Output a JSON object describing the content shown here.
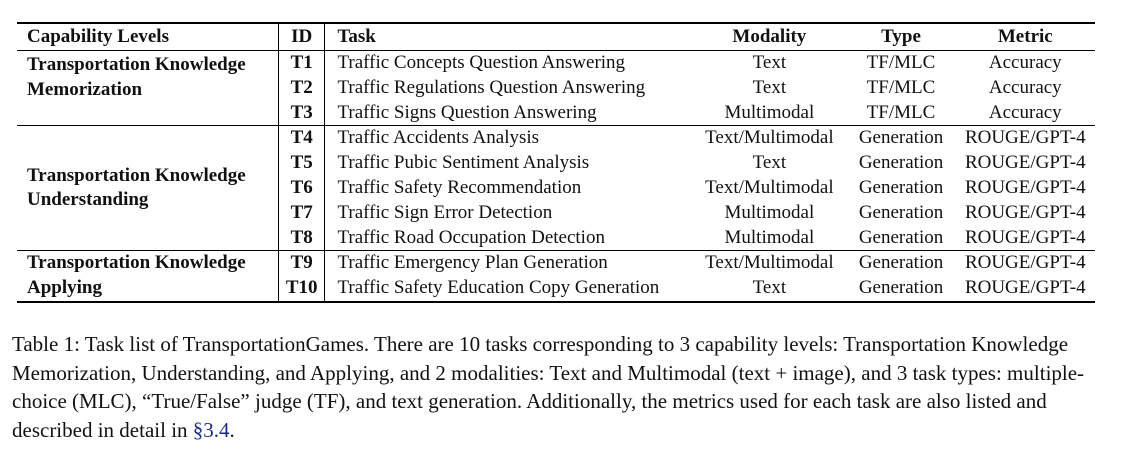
{
  "table": {
    "headers": {
      "capability": "Capability Levels",
      "id": "ID",
      "task": "Task",
      "modality": "Modality",
      "type": "Type",
      "metric": "Metric"
    },
    "groups": [
      {
        "capability_line1": "Transportation Knowledge",
        "capability_line2": "Memorization",
        "rows": [
          {
            "id": "T1",
            "task": "Traffic Concepts Question Answering",
            "modality": "Text",
            "type": "TF/MLC",
            "metric": "Accuracy"
          },
          {
            "id": "T2",
            "task": "Traffic Regulations Question Answering",
            "modality": "Text",
            "type": "TF/MLC",
            "metric": "Accuracy"
          },
          {
            "id": "T3",
            "task": "Traffic Signs Question Answering",
            "modality": "Multimodal",
            "type": "TF/MLC",
            "metric": "Accuracy"
          }
        ]
      },
      {
        "capability_line1": "Transportation Knowledge",
        "capability_line2": "Understanding",
        "rows": [
          {
            "id": "T4",
            "task": "Traffic Accidents Analysis",
            "modality": "Text/Multimodal",
            "type": "Generation",
            "metric": "ROUGE/GPT-4"
          },
          {
            "id": "T5",
            "task": "Traffic Pubic Sentiment Analysis",
            "modality": "Text",
            "type": "Generation",
            "metric": "ROUGE/GPT-4"
          },
          {
            "id": "T6",
            "task": "Traffic Safety Recommendation",
            "modality": "Text/Multimodal",
            "type": "Generation",
            "metric": "ROUGE/GPT-4"
          },
          {
            "id": "T7",
            "task": "Traffic Sign Error Detection",
            "modality": "Multimodal",
            "type": "Generation",
            "metric": "ROUGE/GPT-4"
          },
          {
            "id": "T8",
            "task": "Traffic Road Occupation Detection",
            "modality": "Multimodal",
            "type": "Generation",
            "metric": "ROUGE/GPT-4"
          }
        ]
      },
      {
        "capability_line1": "Transportation Knowledge",
        "capability_line2": "Applying",
        "rows": [
          {
            "id": "T9",
            "task": "Traffic Emergency Plan Generation",
            "modality": "Text/Multimodal",
            "type": "Generation",
            "metric": "ROUGE/GPT-4"
          },
          {
            "id": "T10",
            "task": "Traffic Safety Education Copy Generation",
            "modality": "Text",
            "type": "Generation",
            "metric": "ROUGE/GPT-4"
          }
        ]
      }
    ]
  },
  "caption": {
    "text": "Table 1:  Task list of TransportationGames. There are 10 tasks corresponding to 3 capability levels: Transportation Knowledge Memorization, Understanding, and Applying, and 2 modalities: Text and Multimodal (text + image), and 3 task types: multiple-choice (MLC), “True/False” judge (TF), and text generation. Additionally, the metrics used for each task are also listed and described in detail in ",
    "ref": "§3.4",
    "end": "."
  }
}
